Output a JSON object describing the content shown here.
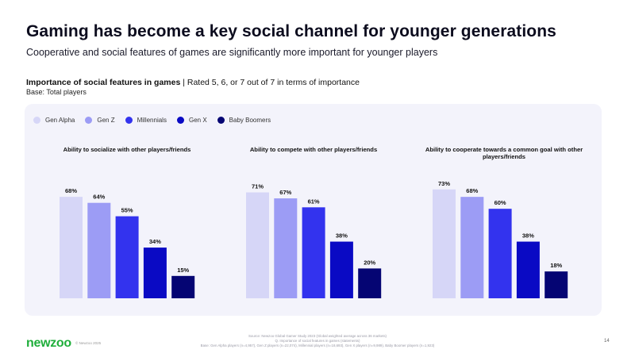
{
  "header": {
    "title": "Gaming has become a key social channel for younger generations",
    "subtitle": "Cooperative and social features of games are significantly more important for younger players",
    "section_title": "Importance of social features in games",
    "section_detail": " | Rated 5, 6, or 7 out of 7 in terms of importance",
    "base": "Base: Total players"
  },
  "legend": [
    {
      "label": "Gen Alpha",
      "color": "#d6d6f7"
    },
    {
      "label": "Gen Z",
      "color": "#9c9cf5"
    },
    {
      "label": "Millennials",
      "color": "#3333ee"
    },
    {
      "label": "Gen X",
      "color": "#0a0ac4"
    },
    {
      "label": "Baby Boomers",
      "color": "#050573"
    }
  ],
  "chart_data": [
    {
      "type": "bar",
      "title": "Ability to socialize with other players/friends",
      "categories": [
        "Gen Alpha",
        "Gen Z",
        "Millennials",
        "Gen X",
        "Baby Boomers"
      ],
      "values": [
        68,
        64,
        55,
        34,
        15
      ],
      "value_labels": [
        "68%",
        "64%",
        "55%",
        "34%",
        "15%"
      ],
      "ylim": [
        0,
        100
      ]
    },
    {
      "type": "bar",
      "title": "Ability to compete with other players/friends",
      "categories": [
        "Gen Alpha",
        "Gen Z",
        "Millennials",
        "Gen X",
        "Baby Boomers"
      ],
      "values": [
        71,
        67,
        61,
        38,
        20
      ],
      "value_labels": [
        "71%",
        "67%",
        "61%",
        "38%",
        "20%"
      ],
      "ylim": [
        0,
        100
      ]
    },
    {
      "type": "bar",
      "title": "Ability to cooperate towards a common goal with other players/friends",
      "categories": [
        "Gen Alpha",
        "Gen Z",
        "Millennials",
        "Gen X",
        "Baby Boomers"
      ],
      "values": [
        73,
        68,
        60,
        38,
        18
      ],
      "value_labels": [
        "73%",
        "68%",
        "60%",
        "38%",
        "18%"
      ],
      "ylim": [
        0,
        100
      ]
    }
  ],
  "footer": {
    "logo": "newzoo",
    "copyright": "© Newzoo 2025",
    "source_lines": [
      "Source: Newzoo Global Gamer Study 2023 (Global weighted average across 36 markets)",
      "Q. Importance of social features in games (statements)",
      "Base: Gen Alpha players (n=4,957), Gen Z players (n=22,074), Millennial players (n=18,693), Gen X players (n=9,989), Baby Boomer players (n=1,923)"
    ],
    "page_number": "14"
  }
}
